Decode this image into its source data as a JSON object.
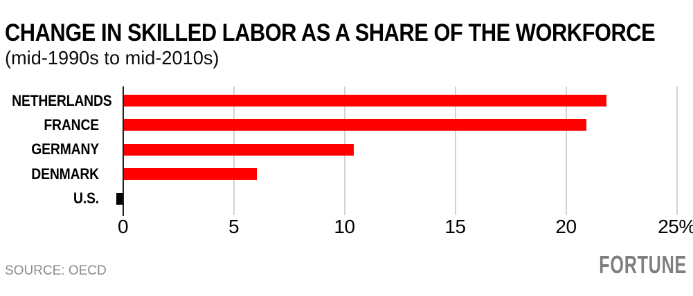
{
  "header": {
    "title": "CHANGE IN SKILLED LABOR AS A SHARE OF THE WORKFORCE",
    "subtitle": "(mid-1990s to mid-2010s)"
  },
  "footer": {
    "source": "SOURCE: OECD",
    "brand": "FORTUNE"
  },
  "colors": {
    "bar_positive": "#fe0000",
    "bar_negative": "#000000",
    "gridline": "#d2d2d2",
    "axis": "#1f1f1f",
    "text": "#000000",
    "muted": "#8a8a8a",
    "brand": "#7f7f7f"
  },
  "chart_data": {
    "type": "bar",
    "orientation": "horizontal",
    "title": "CHANGE IN SKILLED LABOR AS A SHARE OF THE WORKFORCE",
    "subtitle": "(mid-1990s to mid-2010s)",
    "categories": [
      "NETHERLANDS",
      "FRANCE",
      "GERMANY",
      "DENMARK",
      "U.S."
    ],
    "values": [
      21.8,
      20.9,
      10.4,
      6.0,
      -0.3
    ],
    "unit": "%",
    "xlim": [
      -0.5,
      25.7
    ],
    "xticks": [
      0,
      5,
      10,
      15,
      20,
      25
    ],
    "xtick_labels": [
      "0",
      "5",
      "10",
      "15",
      "20",
      "25%"
    ],
    "grid": "vertical",
    "legend": "none",
    "bar_colors": [
      "#fe0000",
      "#fe0000",
      "#fe0000",
      "#fe0000",
      "#000000"
    ],
    "source": "SOURCE: OECD"
  }
}
